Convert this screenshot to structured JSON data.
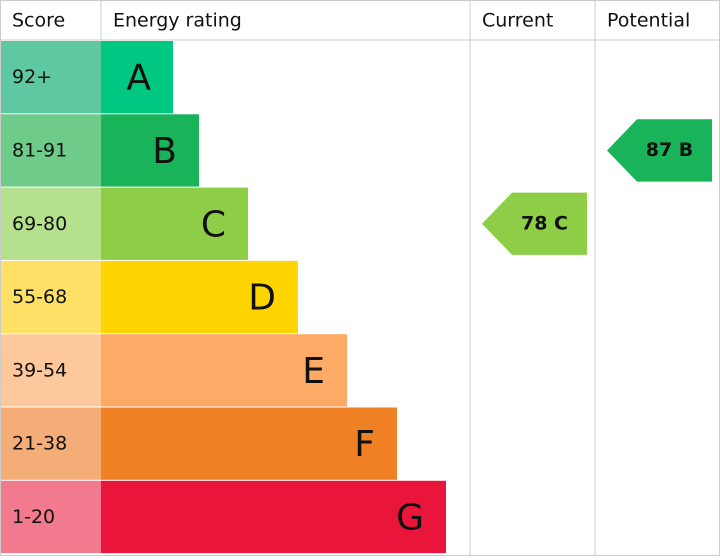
{
  "header": {
    "score": "Score",
    "energy_rating": "Energy rating",
    "current": "Current",
    "potential": "Potential"
  },
  "rows": [
    {
      "score": "92+",
      "band": "A",
      "color": "#00c781",
      "score_color": "#5ec9a1"
    },
    {
      "score": "81-91",
      "band": "B",
      "color": "#19b459",
      "score_color": "#6ecb8a"
    },
    {
      "score": "69-80",
      "band": "C",
      "color": "#8dce46",
      "score_color": "#b5e08d"
    },
    {
      "score": "55-68",
      "band": "D",
      "color": "#ffd500",
      "score_color": "#ffe066"
    },
    {
      "score": "39-54",
      "band": "E",
      "color": "#fcaa65",
      "score_color": "#fdc89b"
    },
    {
      "score": "21-38",
      "band": "F",
      "color": "#ef8023",
      "score_color": "#f4ad77"
    },
    {
      "score": "1-20",
      "band": "G",
      "color": "#e9153b",
      "score_color": "#f27a8e"
    }
  ],
  "current": {
    "label": "78 C",
    "color": "#8dce46"
  },
  "potential": {
    "label": "87 B",
    "color": "#19b459"
  }
}
